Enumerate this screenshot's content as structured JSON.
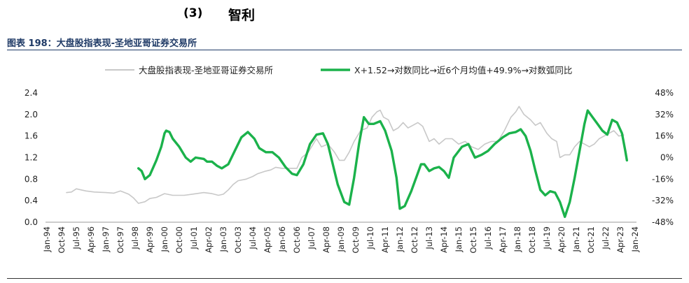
{
  "header": {
    "section_number": "(3)",
    "section_title": "智利",
    "figure_title": "图表 198：大盘股指表现-圣地亚哥证券交易所"
  },
  "chart_data": {
    "type": "line",
    "legend_placement": "top",
    "grid": false,
    "xlim": [
      "1994-01",
      "2024-01"
    ],
    "x_tick_labels": [
      "Jan-94",
      "Oct-94",
      "Jul-95",
      "Apr-96",
      "Jan-97",
      "Oct-97",
      "Jul-98",
      "Apr-99",
      "Jan-00",
      "Oct-00",
      "Jul-01",
      "Apr-02",
      "Jan-03",
      "Oct-03",
      "Jul-04",
      "Apr-05",
      "Jan-06",
      "Oct-06",
      "Jul-07",
      "Apr-08",
      "Jan-09",
      "Oct-09",
      "Jul-10",
      "Apr-11",
      "Jan-12",
      "Oct-12",
      "Jul-13",
      "Apr-14",
      "Jan-15",
      "Oct-15",
      "Jul-16",
      "Apr-17",
      "Jan-18",
      "Oct-18",
      "Jul-19",
      "Apr-20",
      "Jan-21",
      "Oct-21",
      "Jul-22",
      "Apr-23",
      "Jan-24"
    ],
    "y_left": {
      "ylim": [
        0.0,
        2.4
      ],
      "ticks": [
        "0.0",
        "0.4",
        "0.8",
        "1.2",
        "1.6",
        "2.0",
        "2.4"
      ]
    },
    "y_right": {
      "ylim": [
        -48,
        48
      ],
      "unit": "%",
      "ticks": [
        "-48%",
        "-32%",
        "-16%",
        "0%",
        "16%",
        "32%",
        "48%"
      ]
    },
    "series": [
      {
        "name": "大盘股指表现-圣地亚哥证券交易所",
        "axis": "left",
        "color": "#c8c8c8",
        "points": [
          [
            "1995-01",
            0.55
          ],
          [
            "1995-04",
            0.56
          ],
          [
            "1995-07",
            0.62
          ],
          [
            "1995-10",
            0.6
          ],
          [
            "1996-01",
            0.58
          ],
          [
            "1996-06",
            0.56
          ],
          [
            "1997-01",
            0.55
          ],
          [
            "1997-06",
            0.54
          ],
          [
            "1997-10",
            0.58
          ],
          [
            "1998-03",
            0.52
          ],
          [
            "1998-06",
            0.45
          ],
          [
            "1998-09",
            0.35
          ],
          [
            "1999-01",
            0.38
          ],
          [
            "1999-04",
            0.44
          ],
          [
            "1999-08",
            0.46
          ],
          [
            "2000-01",
            0.53
          ],
          [
            "2000-06",
            0.5
          ],
          [
            "2001-01",
            0.5
          ],
          [
            "2001-06",
            0.52
          ],
          [
            "2002-01",
            0.55
          ],
          [
            "2002-06",
            0.53
          ],
          [
            "2002-10",
            0.5
          ],
          [
            "2003-01",
            0.52
          ],
          [
            "2003-04",
            0.6
          ],
          [
            "2003-07",
            0.7
          ],
          [
            "2003-10",
            0.77
          ],
          [
            "2004-03",
            0.8
          ],
          [
            "2004-07",
            0.85
          ],
          [
            "2004-10",
            0.9
          ],
          [
            "2005-03",
            0.95
          ],
          [
            "2005-06",
            0.97
          ],
          [
            "2005-09",
            1.02
          ],
          [
            "2006-01",
            1.0
          ],
          [
            "2006-06",
            1.0
          ],
          [
            "2006-10",
            1.0
          ],
          [
            "2007-01",
            1.2
          ],
          [
            "2007-05",
            1.3
          ],
          [
            "2007-08",
            1.45
          ],
          [
            "2007-10",
            1.55
          ],
          [
            "2008-01",
            1.4
          ],
          [
            "2008-05",
            1.45
          ],
          [
            "2008-09",
            1.3
          ],
          [
            "2008-12",
            1.15
          ],
          [
            "2009-03",
            1.15
          ],
          [
            "2009-06",
            1.3
          ],
          [
            "2009-09",
            1.5
          ],
          [
            "2010-01",
            1.7
          ],
          [
            "2010-05",
            1.75
          ],
          [
            "2010-08",
            1.95
          ],
          [
            "2010-11",
            2.05
          ],
          [
            "2011-01",
            2.08
          ],
          [
            "2011-03",
            1.95
          ],
          [
            "2011-06",
            1.9
          ],
          [
            "2011-09",
            1.7
          ],
          [
            "2011-12",
            1.75
          ],
          [
            "2012-03",
            1.85
          ],
          [
            "2012-06",
            1.75
          ],
          [
            "2012-09",
            1.8
          ],
          [
            "2012-12",
            1.85
          ],
          [
            "2013-03",
            1.78
          ],
          [
            "2013-07",
            1.5
          ],
          [
            "2013-10",
            1.55
          ],
          [
            "2014-01",
            1.45
          ],
          [
            "2014-05",
            1.55
          ],
          [
            "2014-09",
            1.55
          ],
          [
            "2015-01",
            1.45
          ],
          [
            "2015-05",
            1.5
          ],
          [
            "2015-09",
            1.4
          ],
          [
            "2016-01",
            1.35
          ],
          [
            "2016-05",
            1.45
          ],
          [
            "2016-09",
            1.5
          ],
          [
            "2017-01",
            1.5
          ],
          [
            "2017-05",
            1.7
          ],
          [
            "2017-09",
            1.95
          ],
          [
            "2017-12",
            2.05
          ],
          [
            "2018-02",
            2.15
          ],
          [
            "2018-05",
            2.0
          ],
          [
            "2018-09",
            1.9
          ],
          [
            "2018-12",
            1.8
          ],
          [
            "2019-03",
            1.85
          ],
          [
            "2019-07",
            1.65
          ],
          [
            "2019-10",
            1.55
          ],
          [
            "2020-01",
            1.5
          ],
          [
            "2020-03",
            1.2
          ],
          [
            "2020-06",
            1.25
          ],
          [
            "2020-09",
            1.25
          ],
          [
            "2020-12",
            1.4
          ],
          [
            "2021-03",
            1.5
          ],
          [
            "2021-06",
            1.45
          ],
          [
            "2021-09",
            1.4
          ],
          [
            "2021-12",
            1.45
          ],
          [
            "2022-03",
            1.55
          ],
          [
            "2022-06",
            1.6
          ],
          [
            "2022-09",
            1.65
          ],
          [
            "2022-12",
            1.7
          ],
          [
            "2023-03",
            1.6
          ],
          [
            "2023-06",
            1.62
          ]
        ]
      },
      {
        "name": "X+1.52→对数同比→近6个月均值+49.9%→对数弧同比",
        "axis": "right",
        "color": "#1bb24b",
        "points": [
          [
            "1998-09",
            -8
          ],
          [
            "1998-11",
            -10
          ],
          [
            "1999-01",
            -16
          ],
          [
            "1999-04",
            -13
          ],
          [
            "1999-08",
            -2
          ],
          [
            "1999-11",
            8
          ],
          [
            "2000-01",
            18
          ],
          [
            "2000-02",
            20
          ],
          [
            "2000-04",
            19
          ],
          [
            "2000-06",
            14
          ],
          [
            "2000-10",
            8
          ],
          [
            "2001-02",
            0
          ],
          [
            "2001-05",
            -3
          ],
          [
            "2001-08",
            0
          ],
          [
            "2002-01",
            -1
          ],
          [
            "2002-03",
            -3
          ],
          [
            "2002-06",
            -3
          ],
          [
            "2002-09",
            -6
          ],
          [
            "2002-12",
            -8
          ],
          [
            "2003-04",
            -5
          ],
          [
            "2003-08",
            5
          ],
          [
            "2003-12",
            15
          ],
          [
            "2004-04",
            19
          ],
          [
            "2004-08",
            14
          ],
          [
            "2004-11",
            7
          ],
          [
            "2005-03",
            4
          ],
          [
            "2005-07",
            4
          ],
          [
            "2005-11",
            0
          ],
          [
            "2006-03",
            -7
          ],
          [
            "2006-07",
            -12
          ],
          [
            "2006-10",
            -13
          ],
          [
            "2007-02",
            -5
          ],
          [
            "2007-06",
            10
          ],
          [
            "2007-10",
            17
          ],
          [
            "2008-02",
            18
          ],
          [
            "2008-05",
            10
          ],
          [
            "2008-08",
            -5
          ],
          [
            "2008-11",
            -20
          ],
          [
            "2009-03",
            -33
          ],
          [
            "2009-06",
            -35
          ],
          [
            "2009-09",
            -15
          ],
          [
            "2009-12",
            10
          ],
          [
            "2010-03",
            30
          ],
          [
            "2010-06",
            25
          ],
          [
            "2010-09",
            25
          ],
          [
            "2011-01",
            27
          ],
          [
            "2011-04",
            20
          ],
          [
            "2011-08",
            5
          ],
          [
            "2011-11",
            -15
          ],
          [
            "2012-01",
            -38
          ],
          [
            "2012-04",
            -36
          ],
          [
            "2012-08",
            -25
          ],
          [
            "2012-11",
            -15
          ],
          [
            "2013-02",
            -5
          ],
          [
            "2013-04",
            -5
          ],
          [
            "2013-07",
            -10
          ],
          [
            "2013-10",
            -8
          ],
          [
            "2014-01",
            -7
          ],
          [
            "2014-04",
            -10
          ],
          [
            "2014-07",
            -15
          ],
          [
            "2014-10",
            0
          ],
          [
            "2015-03",
            8
          ],
          [
            "2015-07",
            10
          ],
          [
            "2015-11",
            0
          ],
          [
            "2016-03",
            2
          ],
          [
            "2016-07",
            5
          ],
          [
            "2016-11",
            10
          ],
          [
            "2017-04",
            15
          ],
          [
            "2017-08",
            18
          ],
          [
            "2017-12",
            19
          ],
          [
            "2018-03",
            21
          ],
          [
            "2018-06",
            16
          ],
          [
            "2018-09",
            5
          ],
          [
            "2018-12",
            -10
          ],
          [
            "2019-03",
            -24
          ],
          [
            "2019-06",
            -28
          ],
          [
            "2019-09",
            -25
          ],
          [
            "2019-12",
            -26
          ],
          [
            "2020-03",
            -33
          ],
          [
            "2020-06",
            -44
          ],
          [
            "2020-09",
            -33
          ],
          [
            "2020-12",
            -15
          ],
          [
            "2021-03",
            5
          ],
          [
            "2021-06",
            25
          ],
          [
            "2021-08",
            35
          ],
          [
            "2021-11",
            30
          ],
          [
            "2022-02",
            25
          ],
          [
            "2022-05",
            20
          ],
          [
            "2022-08",
            17
          ],
          [
            "2022-11",
            28
          ],
          [
            "2023-02",
            26
          ],
          [
            "2023-05",
            18
          ],
          [
            "2023-07",
            5
          ],
          [
            "2023-08",
            -2
          ]
        ]
      }
    ]
  }
}
